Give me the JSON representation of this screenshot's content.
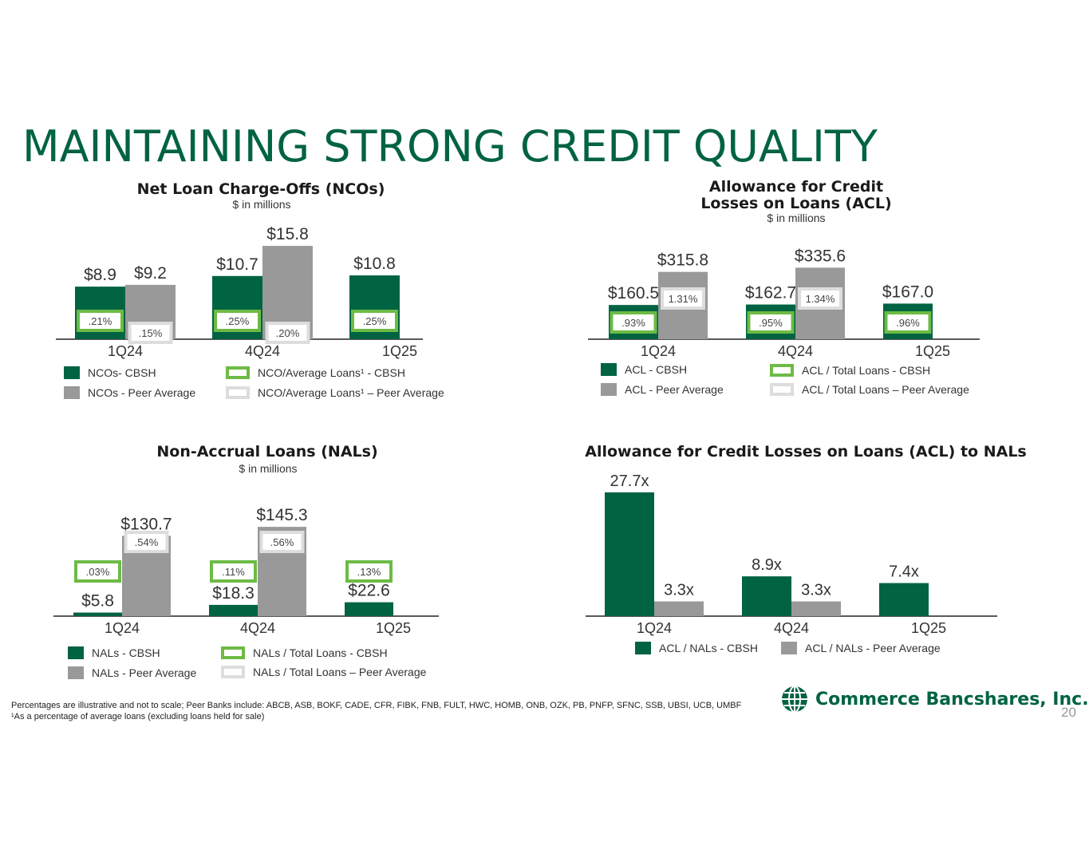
{
  "page": {
    "title": "MAINTAINING STRONG CREDIT QUALITY",
    "footnote_line1": "Percentages are illustrative and not to scale; Peer Banks include: ABCB, ASB, BOKF, CADE, CFR, FIBK, FNB, FULT, HWC, HOMB, ONB, OZK, PB, PNFP, SFNC, SSB, UBSI, UCB, UMBF",
    "footnote_line2": "¹As a percentage of average loans (excluding loans held for sale)",
    "logo_text": "Commerce Bancshares, Inc.",
    "page_number": "20"
  },
  "colors": {
    "cbsh": "#006341",
    "peer": "#999999",
    "pct_cbsh_border": "#6dbb45",
    "pct_peer_border": "#dddddd"
  },
  "chart_data": [
    {
      "id": "nco",
      "type": "bar",
      "title": "Net Loan Charge-Offs (NCOs)",
      "subtitle": "$ in millions",
      "categories": [
        "1Q24",
        "4Q24",
        "1Q25"
      ],
      "series": [
        {
          "name": "NCOs- CBSH",
          "values": [
            8.9,
            10.7,
            10.8
          ],
          "labels": [
            "$8.9",
            "$10.7",
            "$10.8"
          ]
        },
        {
          "name": "NCOs - Peer Average",
          "values": [
            9.2,
            15.8,
            null
          ],
          "labels": [
            "$9.2",
            "$15.8",
            ""
          ]
        }
      ],
      "pct_series": [
        {
          "name": "NCO/Average Loans¹ - CBSH",
          "labels": [
            ".21%",
            ".25%",
            ".25%"
          ]
        },
        {
          "name": "NCO/Average Loans¹ – Peer Average",
          "labels": [
            ".15%",
            ".20%",
            ""
          ]
        }
      ]
    },
    {
      "id": "acl",
      "type": "bar",
      "title_line1": "Allowance for Credit",
      "title_line2": "Losses on Loans (ACL)",
      "subtitle": "$ in millions",
      "categories": [
        "1Q24",
        "4Q24",
        "1Q25"
      ],
      "series": [
        {
          "name": "ACL - CBSH",
          "values": [
            160.5,
            162.7,
            167.0
          ],
          "labels": [
            "$160.5",
            "$162.7",
            "$167.0"
          ]
        },
        {
          "name": "ACL - Peer Average",
          "values": [
            315.8,
            335.6,
            null
          ],
          "labels": [
            "$315.8",
            "$335.6",
            ""
          ]
        }
      ],
      "pct_series": [
        {
          "name": "ACL / Total Loans - CBSH",
          "labels": [
            ".93%",
            ".95%",
            ".96%"
          ]
        },
        {
          "name": "ACL / Total Loans – Peer Average",
          "labels": [
            "1.31%",
            "1.34%",
            ""
          ]
        }
      ]
    },
    {
      "id": "nal",
      "type": "bar",
      "title": "Non-Accrual Loans (NALs)",
      "subtitle": "$ in millions",
      "categories": [
        "1Q24",
        "4Q24",
        "1Q25"
      ],
      "series": [
        {
          "name": "NALs - CBSH",
          "values": [
            5.8,
            18.3,
            22.6
          ],
          "labels": [
            "$5.8",
            "$18.3",
            "$22.6"
          ]
        },
        {
          "name": "NALs - Peer Average",
          "values": [
            130.7,
            145.3,
            null
          ],
          "labels": [
            "$130.7",
            "$145.3",
            ""
          ]
        }
      ],
      "pct_series": [
        {
          "name": "NALs / Total Loans - CBSH",
          "labels": [
            ".03%",
            ".11%",
            ".13%"
          ]
        },
        {
          "name": "NALs / Total Loans – Peer Average",
          "labels": [
            ".54%",
            ".56%",
            ""
          ]
        }
      ]
    },
    {
      "id": "aclnal",
      "type": "bar",
      "title": "Allowance for Credit Losses on Loans (ACL) to NALs",
      "categories": [
        "1Q24",
        "4Q24",
        "1Q25"
      ],
      "series": [
        {
          "name": "ACL / NALs - CBSH",
          "values": [
            27.7,
            8.9,
            7.4
          ],
          "labels": [
            "27.7x",
            "8.9x",
            "7.4x"
          ]
        },
        {
          "name": "ACL / NALs - Peer Average",
          "values": [
            3.3,
            3.3,
            null
          ],
          "labels": [
            "3.3x",
            "3.3x",
            ""
          ]
        }
      ]
    }
  ]
}
